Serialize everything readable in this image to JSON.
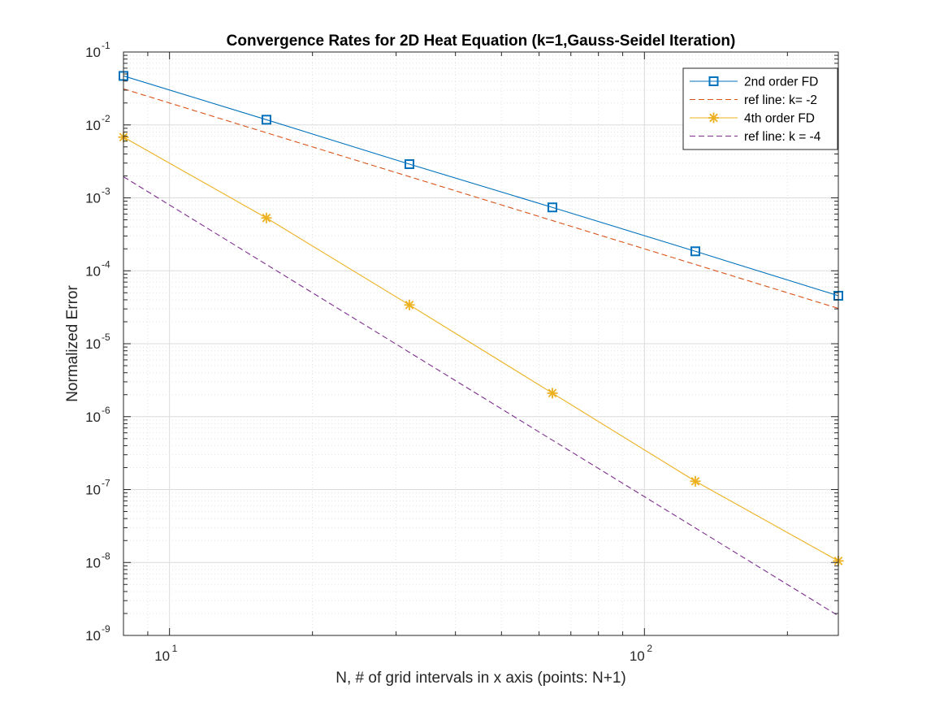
{
  "chart_data": {
    "type": "line",
    "title": "Convergence Rates for 2D Heat Equation (k=1,Gauss-Seidel Iteration)",
    "xlabel": "N, # of grid intervals in x axis (points: N+1)",
    "ylabel": "Normalized Error",
    "xscale": "log",
    "yscale": "log",
    "xlim": [
      8,
      256
    ],
    "ylim": [
      1e-09,
      0.1
    ],
    "grid": true,
    "minor_grid": true,
    "legend_position": "top-right",
    "x_ticks": [
      {
        "base": "10",
        "exp": "1"
      },
      {
        "base": "10",
        "exp": "2"
      }
    ],
    "y_ticks": [
      {
        "base": "10",
        "exp": "-9"
      },
      {
        "base": "10",
        "exp": "-8"
      },
      {
        "base": "10",
        "exp": "-7"
      },
      {
        "base": "10",
        "exp": "-6"
      },
      {
        "base": "10",
        "exp": "-5"
      },
      {
        "base": "10",
        "exp": "-4"
      },
      {
        "base": "10",
        "exp": "-3"
      },
      {
        "base": "10",
        "exp": "-2"
      },
      {
        "base": "10",
        "exp": "-1"
      }
    ],
    "series": [
      {
        "name": "2nd order FD",
        "color": "#0072BD",
        "line": "solid",
        "marker": "square",
        "x": [
          8,
          16,
          32,
          64,
          128,
          256
        ],
        "y": [
          0.047,
          0.0118,
          0.0029,
          0.00074,
          0.000185,
          4.55e-05
        ]
      },
      {
        "name": "ref line: k= -2",
        "color": "#D95319",
        "line": "dashed",
        "marker": "none",
        "x": [
          8,
          256
        ],
        "y": [
          0.03125,
          3.05e-05
        ]
      },
      {
        "name": "4th order FD",
        "color": "#EDB120",
        "line": "solid",
        "marker": "asterisk",
        "x": [
          8,
          16,
          32,
          64,
          128,
          256
        ],
        "y": [
          0.0068,
          0.00053,
          3.4e-05,
          2.1e-06,
          1.3e-07,
          1.05e-08
        ]
      },
      {
        "name": "ref line: k = -4",
        "color": "#7E2F8E",
        "line": "dashed",
        "marker": "none",
        "x": [
          8,
          256
        ],
        "y": [
          0.00195,
          1.86e-09
        ]
      }
    ]
  }
}
